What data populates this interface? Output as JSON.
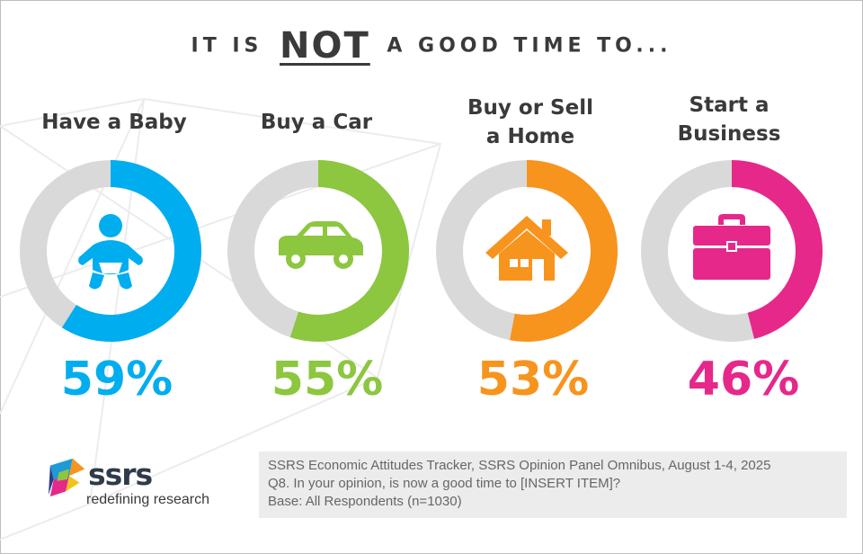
{
  "title": {
    "prefix": "IT IS",
    "emphasis": "NOT",
    "suffix": "A GOOD TIME TO..."
  },
  "chart_data": {
    "type": "donut",
    "title": "IT IS NOT A GOOD TIME TO...",
    "items": [
      {
        "label_lines": [
          "Have a Baby"
        ],
        "value": 59,
        "pct_label": "59%",
        "color": "#00aeef",
        "icon": "baby-icon"
      },
      {
        "label_lines": [
          "Buy a Car"
        ],
        "value": 55,
        "pct_label": "55%",
        "color": "#8dc63f",
        "icon": "car-icon"
      },
      {
        "label_lines": [
          "Buy or Sell",
          "a Home"
        ],
        "value": 53,
        "pct_label": "53%",
        "color": "#f7941d",
        "icon": "house-icon"
      },
      {
        "label_lines": [
          "Start a",
          "Business"
        ],
        "value": 46,
        "pct_label": "46%",
        "color": "#e6288a",
        "icon": "briefcase-icon"
      }
    ],
    "track_color": "#d9d9d9",
    "max": 100
  },
  "logo": {
    "word": "ssrs",
    "tagline": "redefining research"
  },
  "source": {
    "line1": "SSRS Economic Attitudes Tracker, SSRS Opinion Panel Omnibus, August 1-4, 2025",
    "line2": "Q8. In your opinion, is now a good time to [INSERT ITEM]?",
    "line3": "Base: All Respondents (n=1030)"
  }
}
